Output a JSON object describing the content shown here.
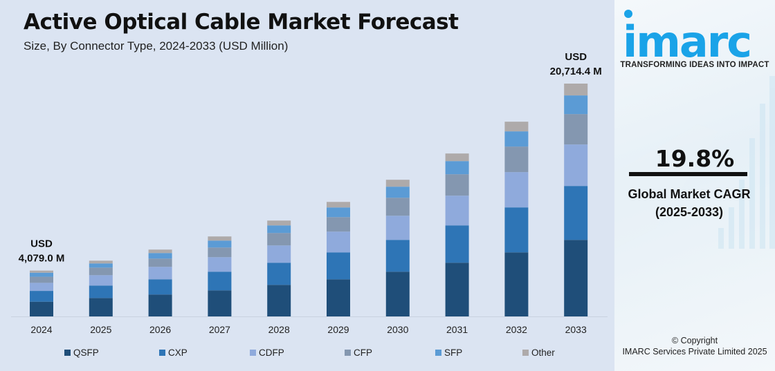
{
  "header": {
    "title": "Active Optical Cable Market Forecast",
    "subtitle": "Size, By Connector Type, 2024-2033 (USD Million)"
  },
  "chart_data": {
    "type": "bar",
    "stacked": true,
    "categories": [
      "2024",
      "2025",
      "2026",
      "2027",
      "2028",
      "2029",
      "2030",
      "2031",
      "2032",
      "2033"
    ],
    "series": [
      {
        "name": "QSFP",
        "color": "#1f4e79",
        "values": [
          1310,
          1640,
          1950,
          2320,
          2810,
          3300,
          3980,
          4780,
          5700,
          6810
        ]
      },
      {
        "name": "CXP",
        "color": "#2e75b6",
        "values": [
          960,
          1107,
          1353,
          1660,
          1968,
          2400,
          2830,
          3320,
          4000,
          4797
        ]
      },
      {
        "name": "CDFP",
        "color": "#8faadc",
        "values": [
          720,
          922,
          1107,
          1290,
          1537,
          1845,
          2150,
          2645,
          3137,
          3690
        ]
      },
      {
        "name": "CFP",
        "color": "#8497b0",
        "values": [
          540,
          676,
          738,
          861,
          1107,
          1290,
          1600,
          1906,
          2275,
          2706
        ]
      },
      {
        "name": "SFP",
        "color": "#5b9bd5",
        "values": [
          360,
          369,
          492,
          615,
          676,
          861,
          984,
          1168,
          1353,
          1660
        ]
      },
      {
        "name": "Other",
        "color": "#aeaaaa",
        "values": [
          189,
          246,
          307,
          369,
          430,
          492,
          615,
          677,
          861,
          1051
        ]
      }
    ],
    "annotations": [
      {
        "category": "2024",
        "line1": "USD",
        "line2": "4,079.0 M"
      },
      {
        "category": "2033",
        "line1": "USD",
        "line2": "20,714.4 M"
      }
    ],
    "ylim": [
      0,
      20714.4
    ],
    "grid": false,
    "legend": "bottom"
  },
  "sidebar": {
    "logo_text": "imarc",
    "tagline": "TRANSFORMING IDEAS INTO IMPACT",
    "cagr_value": "19.8%",
    "cagr_label": "Global Market CAGR",
    "cagr_period": "(2025-2033)",
    "copyright": "© Copyright",
    "company": "IMARC Services Private Limited 2025",
    "brand_color": "#1aa3e8"
  }
}
